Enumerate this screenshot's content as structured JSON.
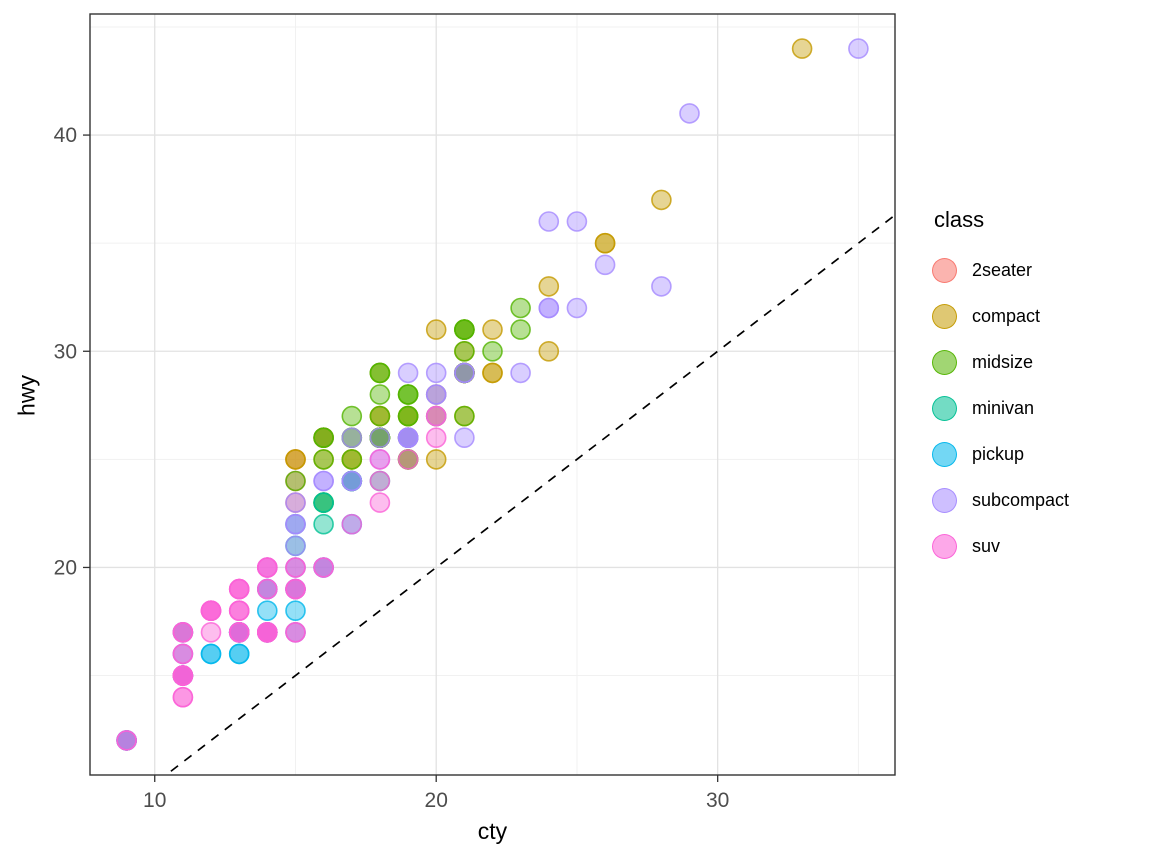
{
  "figure": {
    "x_axis_label": "cty",
    "y_axis_label": "hwy",
    "legend_title": "class"
  },
  "chart_data": {
    "type": "scatter",
    "title": "",
    "xlabel": "cty",
    "ylabel": "hwy",
    "xlim": [
      7.7,
      36.3
    ],
    "ylim": [
      10.4,
      45.6
    ],
    "x_ticks": [
      10,
      20,
      30
    ],
    "y_ticks": [
      20,
      30,
      40
    ],
    "x_minor": [
      15,
      25,
      35
    ],
    "y_minor": [
      15,
      25,
      35,
      45
    ],
    "grid": true,
    "legend_position": "right",
    "legend_title": "class",
    "point_alpha": 0.5,
    "reference_line": {
      "style": "dashed",
      "slope": 1,
      "intercept": 0,
      "color": "#000000"
    },
    "series": [
      {
        "name": "2seater",
        "color": "#F8766D",
        "points": [
          [
            16,
            26
          ],
          [
            15,
            23
          ],
          [
            16,
            26
          ],
          [
            15,
            25
          ],
          [
            15,
            24
          ]
        ]
      },
      {
        "name": "compact",
        "color": "#C49A00",
        "points": [
          [
            18,
            29
          ],
          [
            21,
            29
          ],
          [
            20,
            31
          ],
          [
            21,
            30
          ],
          [
            16,
            26
          ],
          [
            18,
            26
          ],
          [
            18,
            27
          ],
          [
            18,
            26
          ],
          [
            16,
            25
          ],
          [
            20,
            28
          ],
          [
            19,
            27
          ],
          [
            15,
            25
          ],
          [
            17,
            25
          ],
          [
            17,
            25
          ],
          [
            15,
            25
          ],
          [
            21,
            29
          ],
          [
            19,
            27
          ],
          [
            20,
            25
          ],
          [
            20,
            27
          ],
          [
            19,
            25
          ],
          [
            20,
            27
          ],
          [
            21,
            27
          ],
          [
            21,
            29
          ],
          [
            21,
            31
          ],
          [
            22,
            31
          ],
          [
            18,
            26
          ],
          [
            18,
            27
          ],
          [
            24,
            30
          ],
          [
            24,
            33
          ],
          [
            26,
            35
          ],
          [
            28,
            37
          ],
          [
            26,
            35
          ],
          [
            21,
            29
          ],
          [
            19,
            26
          ],
          [
            21,
            29
          ],
          [
            22,
            29
          ],
          [
            17,
            24
          ],
          [
            33,
            44
          ],
          [
            21,
            29
          ],
          [
            19,
            26
          ],
          [
            22,
            29
          ],
          [
            21,
            29
          ],
          [
            21,
            29
          ],
          [
            21,
            29
          ],
          [
            16,
            23
          ],
          [
            17,
            24
          ]
        ]
      },
      {
        "name": "midsize",
        "color": "#53B400",
        "points": [
          [
            15,
            24
          ],
          [
            17,
            25
          ],
          [
            16,
            23
          ],
          [
            19,
            27
          ],
          [
            22,
            30
          ],
          [
            18,
            26
          ],
          [
            18,
            29
          ],
          [
            17,
            26
          ],
          [
            18,
            26
          ],
          [
            18,
            27
          ],
          [
            21,
            30
          ],
          [
            21,
            31
          ],
          [
            18,
            26
          ],
          [
            18,
            26
          ],
          [
            19,
            28
          ],
          [
            23,
            31
          ],
          [
            23,
            32
          ],
          [
            19,
            27
          ],
          [
            19,
            26
          ],
          [
            18,
            26
          ],
          [
            19,
            25
          ],
          [
            19,
            25
          ],
          [
            18,
            26
          ],
          [
            16,
            26
          ],
          [
            17,
            27
          ],
          [
            18,
            28
          ],
          [
            16,
            25
          ],
          [
            21,
            29
          ],
          [
            21,
            27
          ],
          [
            21,
            31
          ],
          [
            21,
            31
          ],
          [
            18,
            26
          ],
          [
            18,
            26
          ],
          [
            19,
            28
          ],
          [
            21,
            29
          ],
          [
            18,
            29
          ],
          [
            19,
            28
          ],
          [
            21,
            29
          ],
          [
            16,
            26
          ],
          [
            18,
            26
          ],
          [
            17,
            26
          ]
        ]
      },
      {
        "name": "minivan",
        "color": "#00C094",
        "points": [
          [
            18,
            24
          ],
          [
            17,
            24
          ],
          [
            16,
            22
          ],
          [
            17,
            24
          ],
          [
            17,
            24
          ],
          [
            11,
            17
          ],
          [
            15,
            22
          ],
          [
            15,
            21
          ],
          [
            16,
            23
          ],
          [
            16,
            23
          ],
          [
            17,
            24
          ]
        ]
      },
      {
        "name": "pickup",
        "color": "#00B6EB",
        "points": [
          [
            15,
            19
          ],
          [
            14,
            18
          ],
          [
            13,
            17
          ],
          [
            14,
            17
          ],
          [
            14,
            19
          ],
          [
            14,
            19
          ],
          [
            9,
            12
          ],
          [
            11,
            17
          ],
          [
            11,
            15
          ],
          [
            12,
            16
          ],
          [
            9,
            12
          ],
          [
            13,
            17
          ],
          [
            13,
            17
          ],
          [
            12,
            16
          ],
          [
            9,
            12
          ],
          [
            11,
            15
          ],
          [
            11,
            16
          ],
          [
            13,
            17
          ],
          [
            11,
            15
          ],
          [
            14,
            17
          ],
          [
            14,
            17
          ],
          [
            13,
            16
          ],
          [
            13,
            16
          ],
          [
            13,
            17
          ],
          [
            11,
            15
          ],
          [
            13,
            17
          ],
          [
            15,
            20
          ],
          [
            16,
            20
          ],
          [
            17,
            22
          ],
          [
            15,
            17
          ],
          [
            15,
            19
          ],
          [
            15,
            18
          ],
          [
            16,
            20
          ]
        ]
      },
      {
        "name": "subcompact",
        "color": "#A58AFF",
        "points": [
          [
            18,
            26
          ],
          [
            18,
            25
          ],
          [
            17,
            26
          ],
          [
            16,
            24
          ],
          [
            15,
            21
          ],
          [
            15,
            22
          ],
          [
            15,
            23
          ],
          [
            15,
            22
          ],
          [
            14,
            20
          ],
          [
            28,
            33
          ],
          [
            24,
            32
          ],
          [
            25,
            32
          ],
          [
            23,
            29
          ],
          [
            24,
            32
          ],
          [
            26,
            34
          ],
          [
            25,
            36
          ],
          [
            24,
            36
          ],
          [
            21,
            29
          ],
          [
            19,
            26
          ],
          [
            19,
            29
          ],
          [
            20,
            28
          ],
          [
            20,
            27
          ],
          [
            17,
            24
          ],
          [
            16,
            24
          ],
          [
            17,
            24
          ],
          [
            21,
            26
          ],
          [
            19,
            26
          ],
          [
            19,
            26
          ],
          [
            19,
            26
          ],
          [
            35,
            44
          ],
          [
            29,
            41
          ],
          [
            21,
            29
          ],
          [
            19,
            26
          ],
          [
            20,
            28
          ],
          [
            20,
            29
          ]
        ]
      },
      {
        "name": "suv",
        "color": "#FB61D7",
        "points": [
          [
            14,
            20
          ],
          [
            11,
            15
          ],
          [
            14,
            20
          ],
          [
            13,
            17
          ],
          [
            12,
            17
          ],
          [
            14,
            19
          ],
          [
            11,
            14
          ],
          [
            11,
            15
          ],
          [
            14,
            17
          ],
          [
            13,
            17
          ],
          [
            13,
            17
          ],
          [
            9,
            12
          ],
          [
            13,
            17
          ],
          [
            11,
            16
          ],
          [
            13,
            18
          ],
          [
            11,
            15
          ],
          [
            11,
            17
          ],
          [
            11,
            17
          ],
          [
            12,
            18
          ],
          [
            14,
            17
          ],
          [
            15,
            19
          ],
          [
            14,
            17
          ],
          [
            13,
            19
          ],
          [
            13,
            19
          ],
          [
            17,
            22
          ],
          [
            15,
            19
          ],
          [
            15,
            20
          ],
          [
            14,
            17
          ],
          [
            9,
            12
          ],
          [
            14,
            19
          ],
          [
            13,
            18
          ],
          [
            11,
            14
          ],
          [
            11,
            15
          ],
          [
            12,
            18
          ],
          [
            12,
            18
          ],
          [
            11,
            15
          ],
          [
            11,
            17
          ],
          [
            11,
            16
          ],
          [
            12,
            18
          ],
          [
            14,
            17
          ],
          [
            13,
            19
          ],
          [
            13,
            19
          ],
          [
            14,
            17
          ],
          [
            15,
            17
          ],
          [
            14,
            20
          ],
          [
            12,
            18
          ],
          [
            18,
            25
          ],
          [
            18,
            24
          ],
          [
            20,
            27
          ],
          [
            19,
            25
          ],
          [
            20,
            26
          ],
          [
            18,
            23
          ],
          [
            15,
            20
          ],
          [
            16,
            20
          ],
          [
            15,
            19
          ],
          [
            15,
            17
          ],
          [
            16,
            20
          ],
          [
            14,
            17
          ],
          [
            11,
            15
          ],
          [
            13,
            18
          ]
        ]
      }
    ]
  }
}
